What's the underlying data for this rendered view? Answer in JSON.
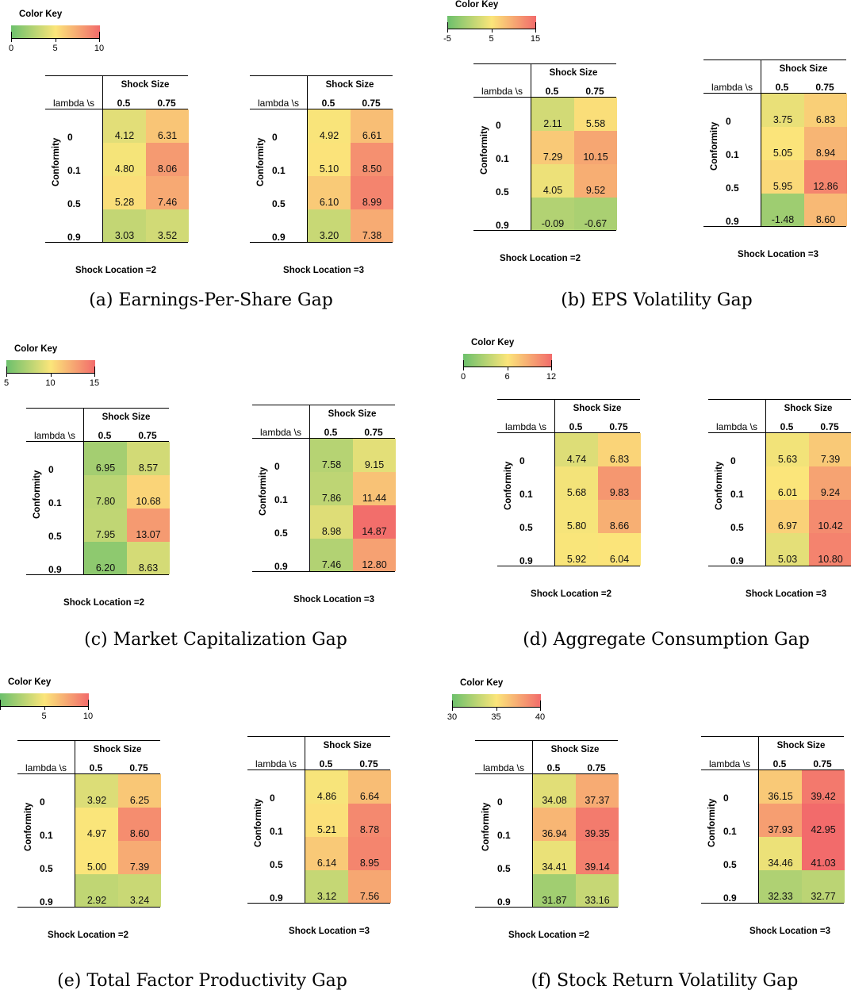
{
  "labels": {
    "color_key": "Color Key",
    "shock_size": "Shock Size",
    "lambda_s": "lambda \\s",
    "conformity": "Conformity",
    "col_05": "0.5",
    "col_075": "0.75",
    "rows": [
      "0",
      "0.1",
      "0.5",
      "0.9"
    ],
    "loc2": "Shock Location =2",
    "loc3": "Shock Location =3"
  },
  "colors": {
    "low": "#6cc06c",
    "mid": "#fbe57a",
    "high": "#f26b6b"
  },
  "chart_data": [
    {
      "type": "heatmap",
      "caption": "(a) Earnings-Per-Share Gap",
      "colorkey": {
        "min": 0,
        "max": 10,
        "ticks": [
          "0",
          "5",
          "10"
        ]
      },
      "tables": [
        {
          "location": "Shock Location =2",
          "values": [
            [
              "4.12",
              "6.31"
            ],
            [
              "4.80",
              "8.06"
            ],
            [
              "5.28",
              "7.46"
            ],
            [
              "3.03",
              "3.52"
            ]
          ]
        },
        {
          "location": "Shock Location =3",
          "values": [
            [
              "4.92",
              "6.61"
            ],
            [
              "5.10",
              "8.50"
            ],
            [
              "6.10",
              "8.99"
            ],
            [
              "3.20",
              "7.38"
            ]
          ]
        }
      ]
    },
    {
      "type": "heatmap",
      "caption": "(b) EPS Volatility Gap",
      "colorkey": {
        "min": -5,
        "max": 15,
        "ticks": [
          "-5",
          "5",
          "15"
        ]
      },
      "tables": [
        {
          "location": "Shock Location =2",
          "values": [
            [
              "2.11",
              "5.58"
            ],
            [
              "7.29",
              "10.15"
            ],
            [
              "4.05",
              "9.52"
            ],
            [
              "-0.09",
              "-0.67"
            ]
          ]
        },
        {
          "location": "Shock Location =3",
          "values": [
            [
              "3.75",
              "6.83"
            ],
            [
              "5.05",
              "8.94"
            ],
            [
              "5.95",
              "12.86"
            ],
            [
              "-1.48",
              "8.60"
            ]
          ]
        }
      ]
    },
    {
      "type": "heatmap",
      "caption": "(c) Market Capitalization Gap",
      "colorkey": {
        "min": 5,
        "max": 15,
        "ticks": [
          "5",
          "10",
          "15"
        ]
      },
      "tables": [
        {
          "location": "Shock Location =2",
          "values": [
            [
              "6.95",
              "8.57"
            ],
            [
              "7.80",
              "10.68"
            ],
            [
              "7.95",
              "13.07"
            ],
            [
              "6.20",
              "8.63"
            ]
          ]
        },
        {
          "location": "Shock Location =3",
          "values": [
            [
              "7.58",
              "9.15"
            ],
            [
              "7.86",
              "11.44"
            ],
            [
              "8.98",
              "14.87"
            ],
            [
              "7.46",
              "12.80"
            ]
          ]
        }
      ]
    },
    {
      "type": "heatmap",
      "caption": "(d) Aggregate Consumption Gap",
      "colorkey": {
        "min": 0,
        "max": 12,
        "ticks": [
          "0",
          "6",
          "12"
        ]
      },
      "tables": [
        {
          "location": "Shock Location =2",
          "values": [
            [
              "4.74",
              "6.83"
            ],
            [
              "5.68",
              "9.83"
            ],
            [
              "5.80",
              "8.66"
            ],
            [
              "5.92",
              "6.04"
            ]
          ]
        },
        {
          "location": "Shock Location =3",
          "values": [
            [
              "5.63",
              "7.39"
            ],
            [
              "6.01",
              "9.24"
            ],
            [
              "6.97",
              "10.42"
            ],
            [
              "5.03",
              "10.80"
            ]
          ]
        }
      ]
    },
    {
      "type": "heatmap",
      "caption": "(e) Total Factor Productivity Gap",
      "colorkey": {
        "min": 0,
        "max": 10,
        "ticks": [
          "5",
          "10"
        ]
      },
      "tables": [
        {
          "location": "Shock Location =2",
          "values": [
            [
              "3.92",
              "6.25"
            ],
            [
              "4.97",
              "8.60"
            ],
            [
              "5.00",
              "7.39"
            ],
            [
              "2.92",
              "3.24"
            ]
          ]
        },
        {
          "location": "Shock Location =3",
          "values": [
            [
              "4.86",
              "6.64"
            ],
            [
              "5.21",
              "8.78"
            ],
            [
              "6.14",
              "8.95"
            ],
            [
              "3.12",
              "7.56"
            ]
          ]
        }
      ]
    },
    {
      "type": "heatmap",
      "caption": "(f) Stock Return Volatility Gap",
      "colorkey": {
        "min": 30,
        "max": 40,
        "ticks": [
          "30",
          "35",
          "40"
        ]
      },
      "tables": [
        {
          "location": "Shock Location =2",
          "values": [
            [
              "34.08",
              "37.37"
            ],
            [
              "36.94",
              "39.35"
            ],
            [
              "34.41",
              "39.14"
            ],
            [
              "31.87",
              "33.16"
            ]
          ]
        },
        {
          "location": "Shock Location =3",
          "values": [
            [
              "36.15",
              "39.42"
            ],
            [
              "37.93",
              "42.95"
            ],
            [
              "34.46",
              "41.03"
            ],
            [
              "32.33",
              "32.77"
            ]
          ]
        }
      ]
    }
  ]
}
